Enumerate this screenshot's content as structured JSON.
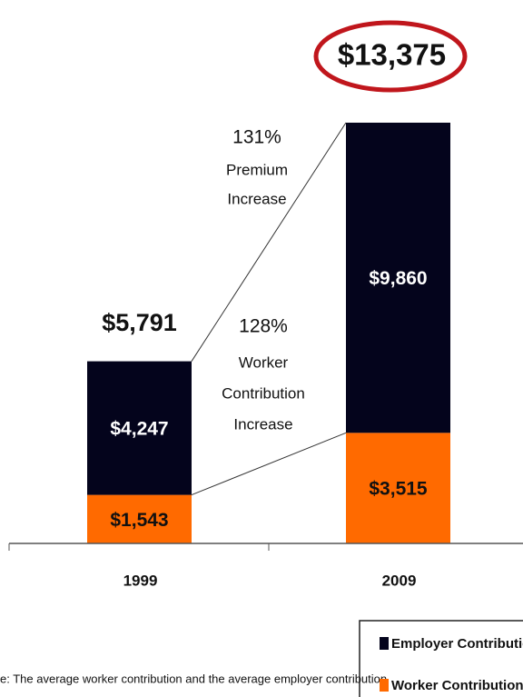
{
  "chart_data": {
    "type": "stacked_bar",
    "categories": [
      "1999",
      "2009"
    ],
    "series": [
      {
        "name": "Worker Contribution",
        "color": "#ff6a00",
        "values": [
          1543,
          3515
        ],
        "value_labels": [
          "$1,543",
          "$3,515"
        ]
      },
      {
        "name": "Employer Contribution",
        "color": "#04041c",
        "values": [
          4247,
          9860
        ],
        "value_labels": [
          "$4,247",
          "$9,860"
        ]
      }
    ],
    "totals": [
      5791,
      13375
    ],
    "total_labels": [
      "$5,791",
      "$13,375"
    ],
    "annotations": {
      "premium": [
        "131%",
        "Premium",
        "Increase"
      ],
      "worker": [
        "128%",
        "Worker",
        "Contribution",
        "Increase"
      ]
    },
    "footnote": "e: The average worker contribution and the average employer contribution"
  }
}
